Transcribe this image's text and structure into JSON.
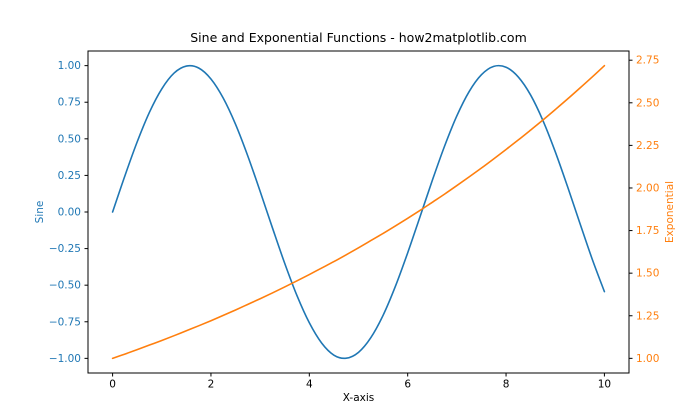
{
  "figure": {
    "background": "#ffffff",
    "spine_color": "#000000"
  },
  "chart_data": {
    "type": "line",
    "title": "Sine and Exponential Functions - how2matplotlib.com",
    "xlabel": "X-axis",
    "grid": false,
    "legend": "none",
    "x_axis": {
      "lim": [
        -0.5,
        10.5
      ],
      "tick_values": [
        0,
        2,
        4,
        6,
        8,
        10
      ],
      "tick_labels": [
        "0",
        "2",
        "4",
        "6",
        "8",
        "10"
      ],
      "tick_label_color": "#000000"
    },
    "left_axis": {
      "label": "Sine",
      "lim": [
        -1.1,
        1.1
      ],
      "tick_values": [
        -1.0,
        -0.75,
        -0.5,
        -0.25,
        0.0,
        0.25,
        0.5,
        0.75,
        1.0
      ],
      "tick_labels": [
        "−1.00",
        "−0.75",
        "−0.50",
        "−0.25",
        "0.00",
        "0.25",
        "0.50",
        "0.75",
        "1.00"
      ],
      "color": "#1f77b4"
    },
    "right_axis": {
      "label": "Exponential",
      "lim": [
        0.914,
        2.804
      ],
      "tick_values": [
        1.0,
        1.25,
        1.5,
        1.75,
        2.0,
        2.25,
        2.5,
        2.75
      ],
      "tick_labels": [
        "1.00",
        "1.25",
        "1.50",
        "1.75",
        "2.00",
        "2.25",
        "2.50",
        "2.75"
      ],
      "color": "#ff7f0e"
    },
    "x": [
      0,
      0.25,
      0.5,
      0.75,
      1,
      1.25,
      1.5,
      1.75,
      2,
      2.25,
      2.5,
      2.75,
      3,
      3.25,
      3.5,
      3.75,
      4,
      4.25,
      4.5,
      4.75,
      5,
      5.25,
      5.5,
      5.75,
      6,
      6.25,
      6.5,
      6.75,
      7,
      7.25,
      7.5,
      7.75,
      8,
      8.25,
      8.5,
      8.75,
      9,
      9.25,
      9.5,
      9.75,
      10
    ],
    "series": [
      {
        "name": "Sine",
        "axis": "left",
        "color": "#1f77b4",
        "linewidth": 1.6,
        "values": [
          0.0,
          0.247,
          0.479,
          0.682,
          0.841,
          0.949,
          0.997,
          0.984,
          0.909,
          0.778,
          0.599,
          0.382,
          0.141,
          -0.108,
          -0.351,
          -0.572,
          -0.757,
          -0.895,
          -0.978,
          -0.999,
          -0.959,
          -0.859,
          -0.706,
          -0.508,
          -0.279,
          -0.033,
          0.215,
          0.45,
          0.657,
          0.823,
          0.938,
          0.995,
          0.989,
          0.922,
          0.799,
          0.625,
          0.412,
          0.174,
          -0.075,
          -0.32,
          -0.544
        ]
      },
      {
        "name": "Exponential",
        "axis": "right",
        "color": "#ff7f0e",
        "linewidth": 1.6,
        "values": [
          1.0,
          1.025,
          1.051,
          1.078,
          1.105,
          1.133,
          1.162,
          1.191,
          1.221,
          1.252,
          1.284,
          1.317,
          1.35,
          1.384,
          1.419,
          1.455,
          1.492,
          1.53,
          1.568,
          1.608,
          1.649,
          1.691,
          1.733,
          1.777,
          1.822,
          1.868,
          1.916,
          1.964,
          2.014,
          2.065,
          2.117,
          2.171,
          2.226,
          2.282,
          2.34,
          2.399,
          2.46,
          2.522,
          2.586,
          2.651,
          2.718
        ]
      }
    ]
  }
}
